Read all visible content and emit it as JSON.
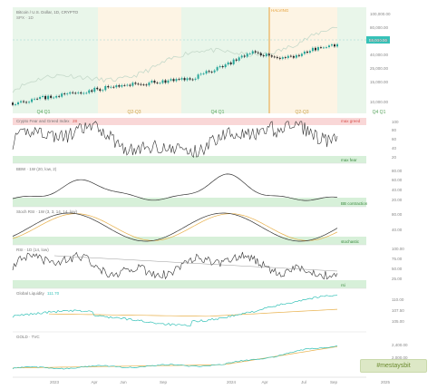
{
  "header": {
    "legend_main": "Bitcoin / U.S. Dollar, 1D, CRYPTO",
    "legend_sub": "SPX · 1D",
    "halving_label": "HALVING",
    "price_badge": "58,000.00"
  },
  "quarters": [
    "Q4 Q1",
    "Q2-Q3",
    "Q4 Q1",
    "Q2-Q3",
    "Q4 Q1"
  ],
  "colors": {
    "price_up": "#26a69a",
    "price_down": "#222222",
    "spx": "#c5d9ca",
    "panel_line": "#333333",
    "ma_orange": "#e8b04a",
    "green_zone": "#d7f0d9",
    "red_zone": "#f9d7d7",
    "halving": "#e6a23c",
    "teal": "#36c2b8"
  },
  "main_axis": [
    "100,000.00",
    "80,000.00",
    "60,000.00",
    "40,000.00",
    "25,000.00",
    "15,000.00",
    "10,000.00"
  ],
  "panels": {
    "fear_greed": {
      "label": "Crypto Fear and Greed Index",
      "value": "28",
      "tag_top": "max greed",
      "tag_bottom": "max fear",
      "axis": [
        "100",
        "80",
        "60",
        "40",
        "20"
      ]
    },
    "bbw": {
      "label": "BBW · 1W (20, low, 2)",
      "tag_bottom": "BB contraction",
      "axis": [
        "80.00",
        "60.00",
        "40.00",
        "20.00"
      ]
    },
    "stoch": {
      "label": "Stoch RSI · 1W (3, 3, 14, 14, low)",
      "tag_bottom": "stochastic",
      "axis": [
        "80.00",
        "40.00"
      ]
    },
    "rsi": {
      "label": "RSI · 1D (14, low)",
      "tag_bottom": "rsi",
      "axis": [
        "100.00",
        "75.00",
        "50.00",
        "25.00"
      ]
    },
    "liquidity": {
      "label": "Global Liquidity",
      "value": "111.70",
      "axis": [
        "110.00",
        "107.50",
        "105.00"
      ]
    },
    "gold": {
      "label": "GOLD · TVC",
      "axis": [
        "2,400.00",
        "2,000.00",
        "1,800.00"
      ]
    }
  },
  "x_axis": [
    "2023",
    "Apr",
    "Jun",
    "Sep",
    "2024",
    "Apr",
    "Jul",
    "Sep",
    "2025"
  ],
  "watermark": "#mestaysbit"
}
